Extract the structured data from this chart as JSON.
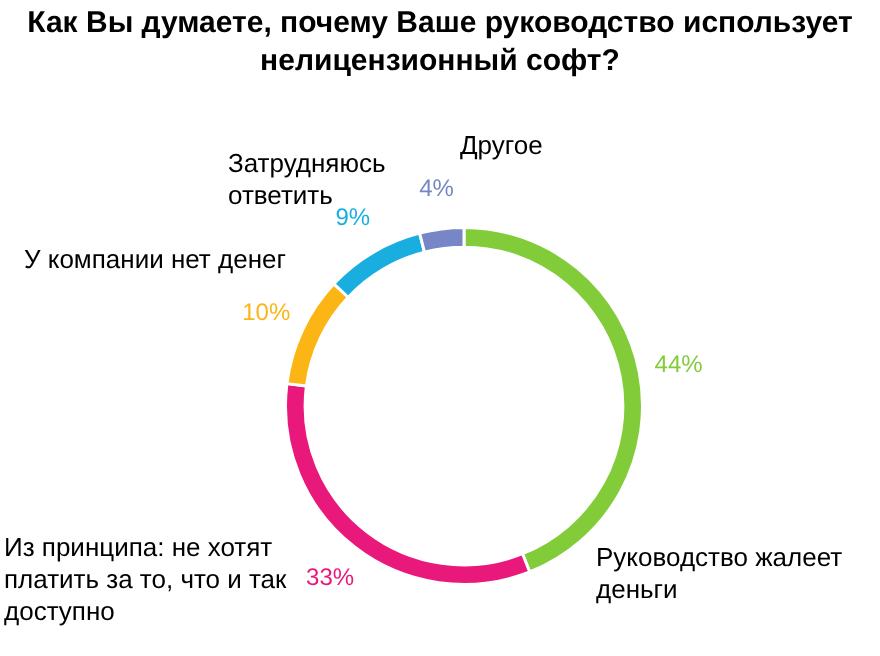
{
  "chart_data": {
    "type": "donut",
    "title": "Как Вы думаете, почему Ваше руководство использует нелицензионный софт?",
    "categories": [
      "Руководство жалеет деньги",
      "Из принципа: не хотят платить за то, что и так доступно",
      "У компании нет денег",
      "Затрудняюсь ответить",
      "Другое"
    ],
    "values": [
      44,
      33,
      10,
      9,
      4
    ],
    "colors": [
      "#82cc3a",
      "#e8197b",
      "#fbb616",
      "#1aaee0",
      "#7686c6"
    ],
    "value_labels": [
      "44%",
      "33%",
      "10%",
      "9%",
      "4%"
    ],
    "legend": false
  }
}
